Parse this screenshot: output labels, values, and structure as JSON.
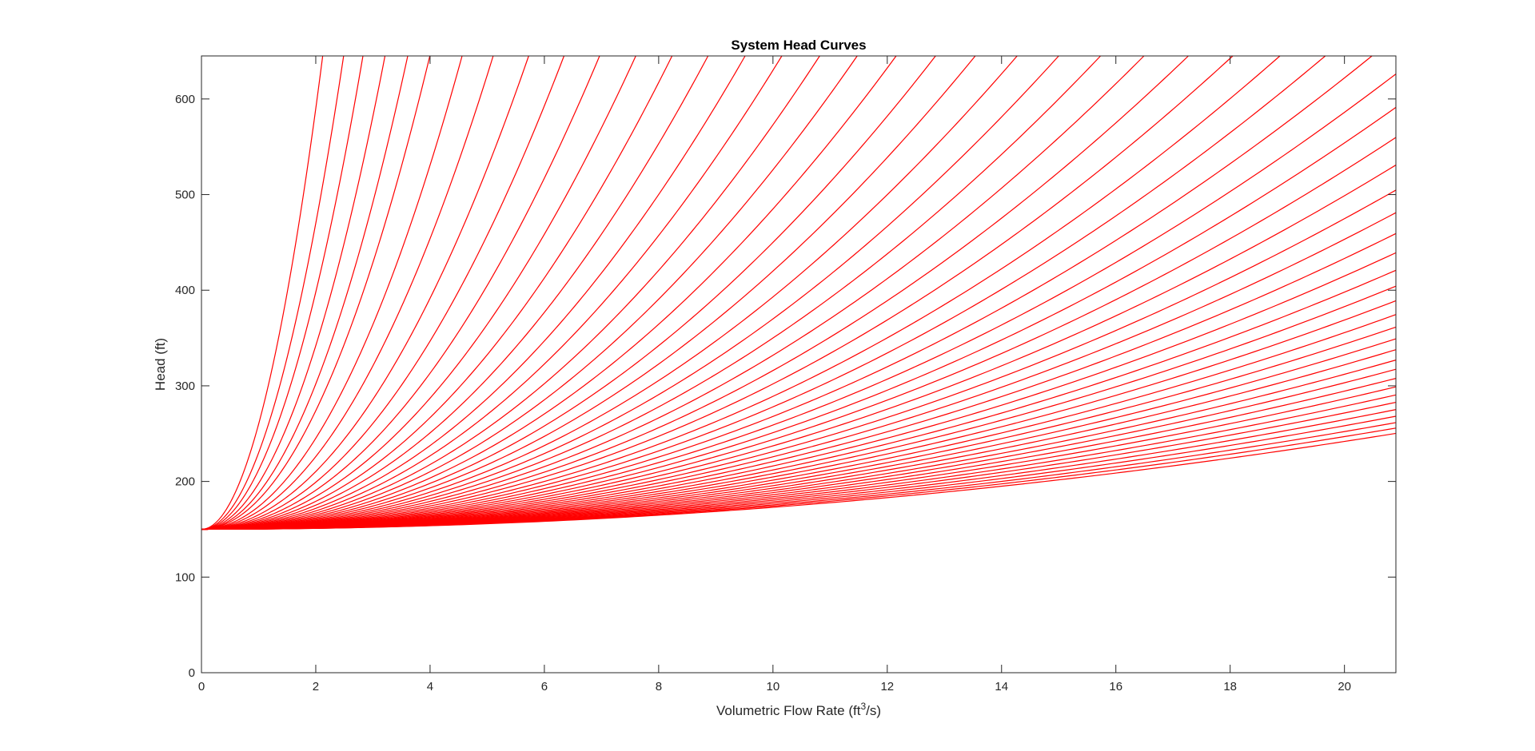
{
  "chart_data": {
    "type": "line",
    "title": "System Head Curves",
    "xlabel": "Volumetric Flow Rate (ft",
    "xlabel_superscript": "3",
    "xlabel_suffix": "/s)",
    "ylabel": "Head (ft)",
    "xlim": [
      0,
      20.9
    ],
    "ylim": [
      0,
      645
    ],
    "xticks": [
      0,
      2,
      4,
      6,
      8,
      10,
      12,
      14,
      16,
      18,
      20
    ],
    "yticks": [
      0,
      100,
      200,
      300,
      400,
      500,
      600
    ],
    "grid": false,
    "legend": "none",
    "line_color": "#ff0000",
    "static_head": 150,
    "curve_model": "H = static_head + k * Q^2",
    "k_coefficients": [
      0.2296,
      0.2423,
      0.2554,
      0.2706,
      0.2866,
      0.304,
      0.3216,
      0.341,
      0.3612,
      0.383,
      0.4052,
      0.43,
      0.456,
      0.484,
      0.514,
      0.547,
      0.582,
      0.62,
      0.662,
      0.708,
      0.758,
      0.812,
      0.872,
      0.938,
      1.01,
      1.09,
      1.18,
      1.28,
      1.39,
      1.52,
      1.66,
      1.82,
      2.0,
      2.2,
      2.43,
      2.7,
      3.0,
      3.35,
      3.76,
      4.23,
      4.8,
      5.47,
      6.3,
      7.3,
      8.57,
      10.2,
      12.3,
      15.1,
      19.0,
      23.8,
      31.0,
      38.0,
      48.0,
      62.0,
      80.0,
      110.0
    ]
  }
}
